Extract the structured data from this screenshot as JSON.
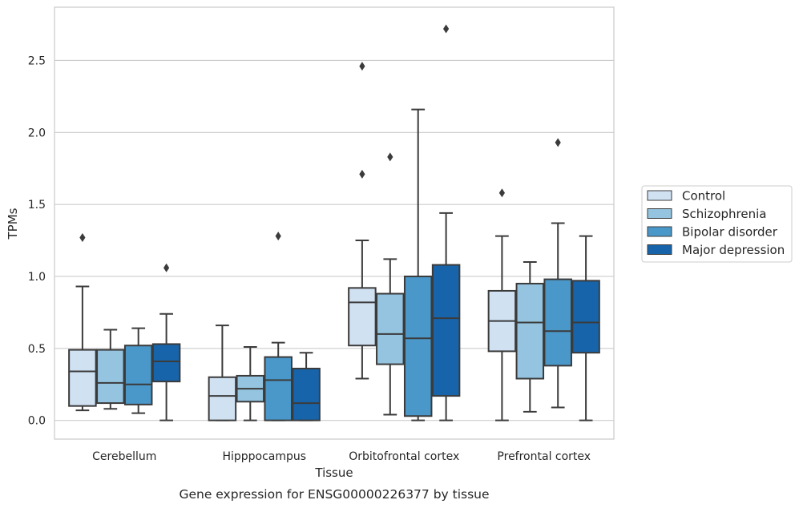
{
  "chart_data": {
    "type": "boxplot",
    "title": "",
    "caption": "Gene expression for ENSG00000226377 by tissue",
    "xlabel": "Tissue",
    "ylabel": "TPMs",
    "ylim": [
      -0.13,
      2.87
    ],
    "yticks": [
      0.0,
      0.5,
      1.0,
      1.5,
      2.0,
      2.5
    ],
    "ytick_labels": [
      "0.0",
      "0.5",
      "1.0",
      "1.5",
      "2.0",
      "2.5"
    ],
    "grid": "horizontal",
    "legend_position": "right",
    "categories": [
      "Cerebellum",
      "Hipppocampus",
      "Orbitofrontal cortex",
      "Prefrontal cortex"
    ],
    "series": [
      {
        "name": "Control",
        "color": "#d0e1f2",
        "boxes": [
          {
            "low": 0.07,
            "q1": 0.1,
            "median": 0.34,
            "q3": 0.49,
            "high": 0.93,
            "outliers": [
              1.27
            ]
          },
          {
            "low": 0.0,
            "q1": 0.0,
            "median": 0.17,
            "q3": 0.3,
            "high": 0.66,
            "outliers": []
          },
          {
            "low": 0.29,
            "q1": 0.52,
            "median": 0.82,
            "q3": 0.92,
            "high": 1.25,
            "outliers": [
              1.71,
              2.46
            ]
          },
          {
            "low": 0.0,
            "q1": 0.48,
            "median": 0.69,
            "q3": 0.9,
            "high": 1.28,
            "outliers": [
              1.58
            ]
          }
        ]
      },
      {
        "name": "Schizophrenia",
        "color": "#94c4df",
        "boxes": [
          {
            "low": 0.08,
            "q1": 0.12,
            "median": 0.26,
            "q3": 0.49,
            "high": 0.63,
            "outliers": []
          },
          {
            "low": 0.0,
            "q1": 0.13,
            "median": 0.22,
            "q3": 0.31,
            "high": 0.51,
            "outliers": []
          },
          {
            "low": 0.04,
            "q1": 0.39,
            "median": 0.6,
            "q3": 0.88,
            "high": 1.12,
            "outliers": [
              1.83
            ]
          },
          {
            "low": 0.06,
            "q1": 0.29,
            "median": 0.68,
            "q3": 0.95,
            "high": 1.1,
            "outliers": []
          }
        ]
      },
      {
        "name": "Bipolar disorder",
        "color": "#4a98c9",
        "boxes": [
          {
            "low": 0.05,
            "q1": 0.11,
            "median": 0.25,
            "q3": 0.52,
            "high": 0.64,
            "outliers": []
          },
          {
            "low": 0.0,
            "q1": 0.0,
            "median": 0.28,
            "q3": 0.44,
            "high": 0.54,
            "outliers": [
              1.28
            ]
          },
          {
            "low": 0.0,
            "q1": 0.03,
            "median": 0.57,
            "q3": 1.0,
            "high": 2.16,
            "outliers": []
          },
          {
            "low": 0.09,
            "q1": 0.38,
            "median": 0.62,
            "q3": 0.98,
            "high": 1.37,
            "outliers": [
              1.93
            ]
          }
        ]
      },
      {
        "name": "Major depression",
        "color": "#1764ab",
        "boxes": [
          {
            "low": 0.0,
            "q1": 0.27,
            "median": 0.41,
            "q3": 0.53,
            "high": 0.74,
            "outliers": [
              1.06
            ]
          },
          {
            "low": 0.0,
            "q1": 0.0,
            "median": 0.12,
            "q3": 0.36,
            "high": 0.47,
            "outliers": []
          },
          {
            "low": 0.0,
            "q1": 0.17,
            "median": 0.71,
            "q3": 1.08,
            "high": 1.44,
            "outliers": [
              2.72
            ]
          },
          {
            "low": 0.0,
            "q1": 0.47,
            "median": 0.68,
            "q3": 0.97,
            "high": 1.28,
            "outliers": []
          }
        ]
      }
    ]
  }
}
